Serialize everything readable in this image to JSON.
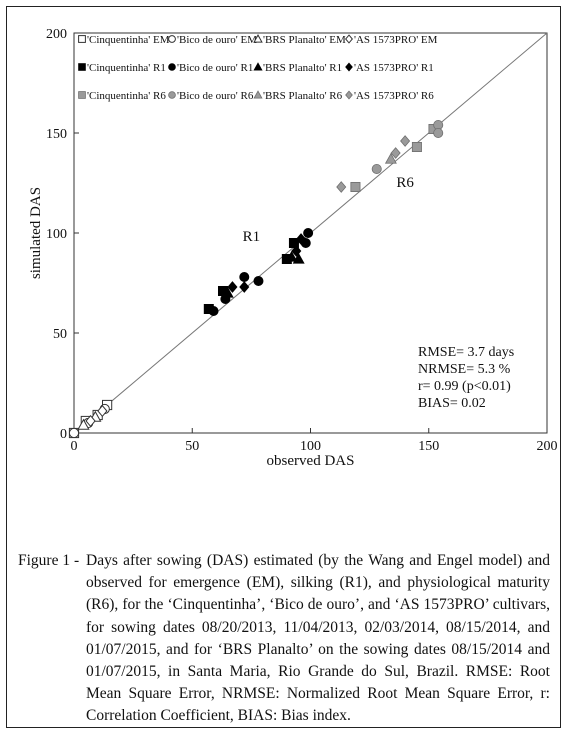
{
  "chart_data": {
    "type": "scatter",
    "xlabel": "observed DAS",
    "ylabel": "simulated DAS",
    "xlim": [
      0,
      200
    ],
    "ylim": [
      0,
      200
    ],
    "xticks": [
      "0",
      "50",
      "100",
      "150",
      "200"
    ],
    "yticks": [
      "0",
      "50",
      "100",
      "150",
      "200"
    ],
    "reference_line": "1:1",
    "grid": false,
    "legend_position": "top-left",
    "legend": [
      [
        "'Cinquentinha' EM",
        "'Bico de ouro' EM",
        "'BRS Planalto' EM",
        "'AS 1573PRO' EM"
      ],
      [
        "'Cinquentinha' R1",
        "'Bico de ouro' R1",
        "'BRS Planalto' R1",
        "'AS 1573PRO' R1"
      ],
      [
        "'Cinquentinha' R6",
        "'Bico de ouro' R6",
        "'BRS Planalto' R6",
        "'AS 1573PRO' R6"
      ]
    ],
    "annotations": [
      {
        "text": "R1",
        "x": 75,
        "y": 96
      },
      {
        "text": "R6",
        "x": 140,
        "y": 123
      }
    ],
    "stats": [
      "RMSE=  3.7 days",
      "NRMSE=  5.3 %",
      "r=  0.99 (p<0.01)",
      "BIAS=  0.02"
    ],
    "series": [
      {
        "name": "'Cinquentinha' EM",
        "marker": "square",
        "fill": "none",
        "color": "#333333",
        "points": [
          [
            0,
            0
          ],
          [
            5,
            6
          ],
          [
            10,
            9
          ],
          [
            14,
            14
          ]
        ]
      },
      {
        "name": "'Bico de ouro' EM",
        "marker": "circle",
        "fill": "none",
        "color": "#333333",
        "points": [
          [
            0,
            0
          ],
          [
            6,
            5
          ],
          [
            13,
            12
          ]
        ]
      },
      {
        "name": "'BRS Planalto' EM",
        "marker": "triangle",
        "fill": "none",
        "color": "#333333",
        "points": [
          [
            4,
            4
          ],
          [
            9,
            8
          ]
        ]
      },
      {
        "name": "'AS 1573PRO' EM",
        "marker": "diamond",
        "fill": "none",
        "color": "#333333",
        "points": [
          [
            7,
            6
          ],
          [
            12,
            11
          ]
        ]
      },
      {
        "name": "'Cinquentinha' R1",
        "marker": "square",
        "fill": "solid",
        "color": "#000000",
        "points": [
          [
            57,
            62
          ],
          [
            63,
            71
          ],
          [
            90,
            87
          ],
          [
            93,
            95
          ]
        ]
      },
      {
        "name": "'Bico de ouro' R1",
        "marker": "circle",
        "fill": "solid",
        "color": "#000000",
        "points": [
          [
            59,
            61
          ],
          [
            64,
            67
          ],
          [
            72,
            78
          ],
          [
            78,
            76
          ],
          [
            98,
            95
          ],
          [
            99,
            100
          ]
        ]
      },
      {
        "name": "'BRS Planalto' R1",
        "marker": "triangle",
        "fill": "solid",
        "color": "#000000",
        "points": [
          [
            65,
            70
          ],
          [
            92,
            88
          ],
          [
            95,
            87
          ]
        ]
      },
      {
        "name": "'AS 1573PRO' R1",
        "marker": "diamond",
        "fill": "solid",
        "color": "#000000",
        "points": [
          [
            67,
            73
          ],
          [
            72,
            73
          ],
          [
            94,
            91
          ],
          [
            96,
            97
          ]
        ]
      },
      {
        "name": "'Cinquentinha' R6",
        "marker": "square",
        "fill": "solid",
        "color": "#9a9a9a",
        "points": [
          [
            119,
            123
          ],
          [
            145,
            143
          ],
          [
            152,
            152
          ]
        ]
      },
      {
        "name": "'Bico de ouro' R6",
        "marker": "circle",
        "fill": "solid",
        "color": "#9a9a9a",
        "points": [
          [
            128,
            132
          ],
          [
            154,
            154
          ],
          [
            154,
            150
          ]
        ]
      },
      {
        "name": "'BRS Planalto' R6",
        "marker": "triangle",
        "fill": "solid",
        "color": "#9a9a9a",
        "points": [
          [
            134,
            137
          ]
        ]
      },
      {
        "name": "'AS 1573PRO' R6",
        "marker": "diamond",
        "fill": "solid",
        "color": "#9a9a9a",
        "points": [
          [
            113,
            123
          ],
          [
            136,
            140
          ],
          [
            140,
            146
          ]
        ]
      }
    ]
  },
  "caption": {
    "lead": "Figure 1 -",
    "text": "Days after sowing (DAS) estimated (by the Wang and Engel model) and observed for emergence (EM), silking (R1), and physiological maturity (R6), for the ‘Cinquentinha’, ‘Bico de ouro’, and ‘AS 1573PRO’ cultivars, for sowing dates 08/20/2013, 11/04/2013, 02/03/2014, 08/15/2014, and 01/07/2015, and for ‘BRS Planalto’ on the sowing dates 08/15/2014 and 01/07/2015, in Santa Maria, Rio Grande do Sul, Brazil. RMSE: Root Mean Square Error, NRMSE: Normalized Root Mean Square Error, r: Correlation Coefficient, BIAS: Bias index."
  }
}
